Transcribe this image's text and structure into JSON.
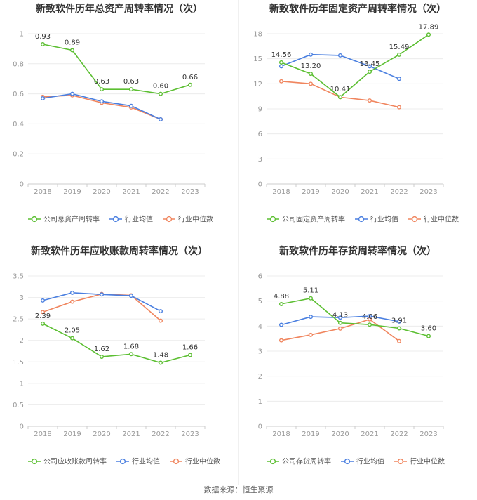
{
  "footer": "数据来源：恒生聚源",
  "legend": {
    "company_suffix": "公司",
    "avg": "行业均值",
    "median": "行业中位数"
  },
  "colors": {
    "company": "#5cbf32",
    "avg": "#4a7fe0",
    "median": "#f0855e"
  },
  "chart_data": [
    {
      "type": "line",
      "title": "新致软件历年总资产周转率情况（次）",
      "x": [
        "2018",
        "2019",
        "2020",
        "2021",
        "2022",
        "2023"
      ],
      "ylim": [
        0,
        1
      ],
      "yticks": [
        "0",
        "0.2",
        "0.4",
        "0.6",
        "0.8",
        "1"
      ],
      "series": [
        {
          "name": "公司总资产周转率",
          "values": [
            0.93,
            0.89,
            0.63,
            0.63,
            0.6,
            0.66
          ],
          "labels": [
            "0.93",
            "0.89",
            "0.63",
            "0.63",
            "0.60",
            "0.66"
          ]
        },
        {
          "name": "行业均值",
          "values": [
            0.57,
            0.6,
            0.55,
            0.52,
            0.43,
            null
          ]
        },
        {
          "name": "行业中位数",
          "values": [
            0.58,
            0.59,
            0.54,
            0.51,
            0.43,
            null
          ]
        }
      ]
    },
    {
      "type": "line",
      "title": "新致软件历年固定资产周转率情况（次）",
      "x": [
        "2018",
        "2019",
        "2020",
        "2021",
        "2022",
        "2023"
      ],
      "ylim": [
        0,
        18
      ],
      "yticks": [
        "0",
        "3",
        "6",
        "9",
        "12",
        "15",
        "18"
      ],
      "series": [
        {
          "name": "公司固定资产周转率",
          "values": [
            14.56,
            13.2,
            10.41,
            13.45,
            15.49,
            17.89
          ],
          "labels": [
            "14.56",
            "13.20",
            "10.41",
            "13.45",
            "15.49",
            "17.89"
          ]
        },
        {
          "name": "行业均值",
          "values": [
            14.1,
            15.5,
            15.4,
            14.1,
            12.6,
            null
          ]
        },
        {
          "name": "行业中位数",
          "values": [
            12.3,
            12.0,
            10.4,
            10.0,
            9.2,
            null
          ]
        }
      ]
    },
    {
      "type": "line",
      "title": "新致软件历年应收账款周转率情况（次）",
      "x": [
        "2018",
        "2019",
        "2020",
        "2021",
        "2022",
        "2023"
      ],
      "ylim": [
        0,
        3.5
      ],
      "yticks": [
        "0",
        "0.5",
        "1",
        "1.5",
        "2",
        "2.5",
        "3",
        "3.5"
      ],
      "series": [
        {
          "name": "公司应收账款周转率",
          "values": [
            2.39,
            2.05,
            1.62,
            1.68,
            1.48,
            1.66
          ],
          "labels": [
            "2.39",
            "2.05",
            "1.62",
            "1.68",
            "1.48",
            "1.66"
          ]
        },
        {
          "name": "行业均值",
          "values": [
            2.93,
            3.11,
            3.07,
            3.04,
            2.68,
            null
          ]
        },
        {
          "name": "行业中位数",
          "values": [
            2.66,
            2.9,
            3.08,
            3.05,
            2.46,
            null
          ]
        }
      ]
    },
    {
      "type": "line",
      "title": "新致软件历年存货周转率情况（次）",
      "x": [
        "2018",
        "2019",
        "2020",
        "2021",
        "2022",
        "2023"
      ],
      "ylim": [
        0,
        6
      ],
      "yticks": [
        "0",
        "1",
        "2",
        "3",
        "4",
        "5",
        "6"
      ],
      "series": [
        {
          "name": "公司存货周转率",
          "values": [
            4.88,
            5.11,
            4.13,
            4.06,
            3.91,
            3.6
          ],
          "labels": [
            "4.88",
            "5.11",
            "4.13",
            "4.06",
            "3.91",
            "3.60"
          ]
        },
        {
          "name": "行业均值",
          "values": [
            4.05,
            4.37,
            4.34,
            4.4,
            4.18,
            null
          ]
        },
        {
          "name": "行业中位数",
          "values": [
            3.43,
            3.65,
            3.9,
            4.27,
            3.4,
            null
          ]
        }
      ]
    }
  ]
}
